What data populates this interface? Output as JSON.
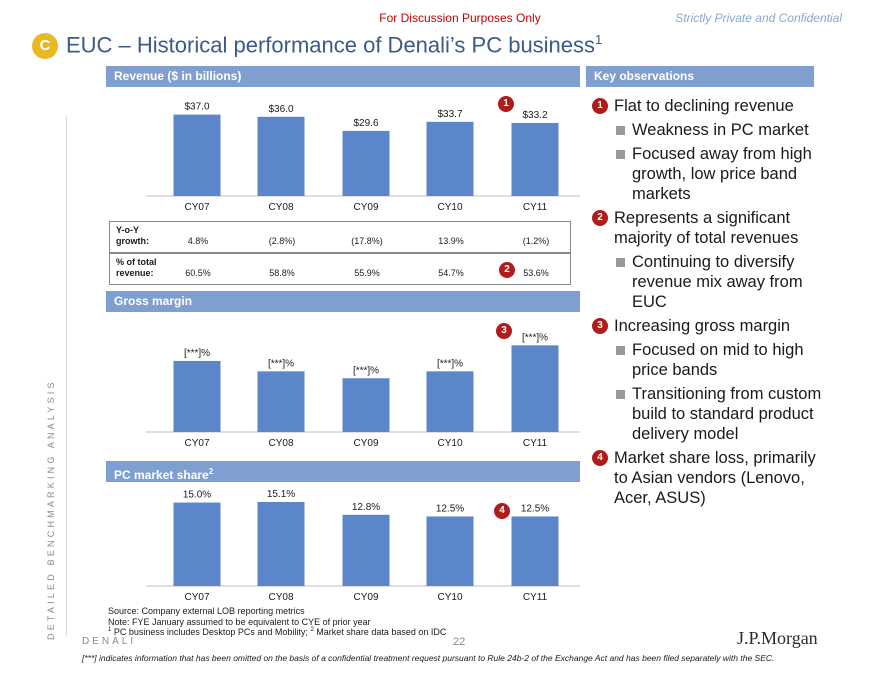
{
  "header": {
    "discussion_note": "For Discussion Purposes Only",
    "confidential_note": "Strictly Private and Confidential",
    "section_letter": "C",
    "title": "EUC – Historical performance of Denali’s PC business",
    "title_footnote": "1"
  },
  "side_label": "DETAILED BENCHMARKING ANALYSIS",
  "revenue_panel": {
    "header": "Revenue ($ in billions)",
    "yoy_label_1": "Y-o-Y",
    "yoy_label_2": "growth:",
    "yoy_values": [
      "4.8%",
      "(2.8%)",
      "(17.8%)",
      "13.9%",
      "(1.2%)"
    ],
    "pct_label_1": "% of total",
    "pct_label_2": "revenue:",
    "pct_values": [
      "60.5%",
      "58.8%",
      "55.9%",
      "54.7%",
      "53.6%"
    ],
    "badge_chart": "1",
    "badge_table": "2"
  },
  "margin_panel": {
    "header": "Gross margin",
    "badge": "3"
  },
  "share_panel": {
    "header": "PC market share",
    "header_sup": "2",
    "badge": "4"
  },
  "chart_data": [
    {
      "type": "bar",
      "title": "Revenue ($ in billions)",
      "categories": [
        "CY07",
        "CY08",
        "CY09",
        "CY10",
        "CY11"
      ],
      "values": [
        37.0,
        36.0,
        29.6,
        33.7,
        33.2
      ],
      "data_labels": [
        "$37.0",
        "$36.0",
        "$29.6",
        "$33.7",
        "$33.2"
      ],
      "ylim": [
        0,
        40
      ]
    },
    {
      "type": "bar",
      "title": "Gross margin",
      "categories": [
        "CY07",
        "CY08",
        "CY09",
        "CY10",
        "CY11"
      ],
      "values": [
        0.82,
        0.7,
        0.62,
        0.7,
        1.0
      ],
      "data_labels": [
        "[***]%",
        "[***]%",
        "[***]%",
        "[***]%",
        "[***]%"
      ],
      "ylim": [
        0,
        1.05
      ]
    },
    {
      "type": "bar",
      "title": "PC market share",
      "categories": [
        "CY07",
        "CY08",
        "CY09",
        "CY10",
        "CY11"
      ],
      "values": [
        15.0,
        15.1,
        12.8,
        12.5,
        12.5
      ],
      "data_labels": [
        "15.0%",
        "15.1%",
        "12.8%",
        "12.5%",
        "12.5%"
      ],
      "ylim": [
        0,
        16
      ]
    }
  ],
  "observations": {
    "header": "Key observations",
    "items": [
      {
        "num": "1",
        "text": "Flat to declining revenue",
        "subs": [
          "Weakness in PC market",
          "Focused away from high growth, low price band markets"
        ]
      },
      {
        "num": "2",
        "text": "Represents a significant majority of total revenues",
        "subs": [
          "Continuing to diversify revenue mix away from EUC"
        ]
      },
      {
        "num": "3",
        "text": "Increasing gross margin",
        "subs": [
          "Focused on mid to high price bands",
          "Transitioning from custom build to standard product delivery model"
        ]
      },
      {
        "num": "4",
        "text": "Market share loss, primarily to Asian vendors (Lenovo, Acer, ASUS)",
        "subs": []
      }
    ]
  },
  "footer": {
    "source": "Source: Company external LOB reporting metrics",
    "note": "Note: FYE January assumed to be equivalent to CYE of prior year",
    "footnote_1_num": "1",
    "footnote_1_text": " PC business includes Desktop PCs and Mobility;",
    "footnote_2_num": "2",
    "footnote_2_text": " Market share data based on IDC",
    "company": "DENALI",
    "page": "22",
    "bank": "J.P.Morgan",
    "omission": "[***] indicates information that has been omitted on the basis of a confidential treatment request pursuant to Rule 24b-2 of the Exchange Act and has been filed separately with the SEC."
  },
  "colors": {
    "bar": "#5b86c9",
    "header_bar": "#7f9fd0",
    "badge": "#b01c1c",
    "title": "#3a5a8c"
  }
}
